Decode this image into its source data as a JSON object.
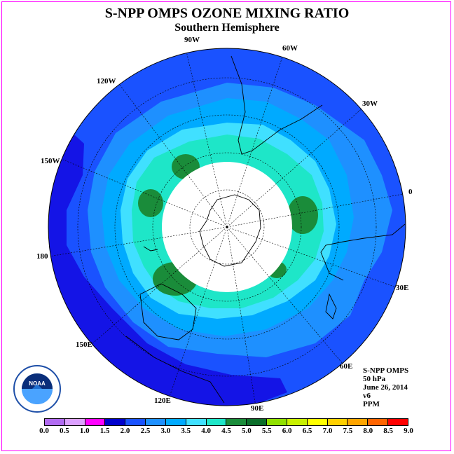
{
  "header": {
    "title": "S-NPP OMPS OZONE MIXING RATIO",
    "subtitle": "Southern Hemisphere"
  },
  "longitude_labels": [
    "90W",
    "60W",
    "120W",
    "30W",
    "150W",
    "0",
    "180",
    "30E",
    "150E",
    "60E",
    "120E",
    "90E"
  ],
  "info_block": {
    "line1": "S-NPP OMPS",
    "line2": "50 hPa",
    "line3": "June 26, 2014",
    "line4": "v6",
    "line5": "PPM"
  },
  "logo": {
    "text": "NOAA",
    "ring_text": "NATIONAL OCEANIC AND ATMOSPHERIC ADMINISTRATION · U.S. DEPARTMENT OF COMMERCE"
  },
  "colorbar": {
    "tick_labels": [
      "0.0",
      "0.5",
      "1.0",
      "1.5",
      "2.0",
      "2.5",
      "3.0",
      "3.5",
      "4.0",
      "4.5",
      "5.0",
      "5.5",
      "6.0",
      "6.5",
      "7.0",
      "7.5",
      "8.0",
      "8.5",
      "9.0"
    ],
    "colors": [
      "#b26bf2",
      "#dca0ff",
      "#ff00ff",
      "#0000cd",
      "#1a52ff",
      "#1e90ff",
      "#00aaff",
      "#40e0ff",
      "#1ee6c8",
      "#1a8c3a",
      "#0b6e2a",
      "#90e000",
      "#c8f000",
      "#ffff00",
      "#ffd000",
      "#ffa500",
      "#ff6400",
      "#ff0000",
      "#8b5a2b"
    ]
  },
  "map_colors": {
    "ocean_outer": "#1414e6",
    "level_2_0": "#1a52ff",
    "level_2_5": "#1e90ff",
    "level_3_0": "#00aaff",
    "level_3_5": "#40e0ff",
    "level_4_0": "#1ee6c8",
    "level_4_5": "#1a8c3a",
    "polar_night": "#ffffff"
  }
}
